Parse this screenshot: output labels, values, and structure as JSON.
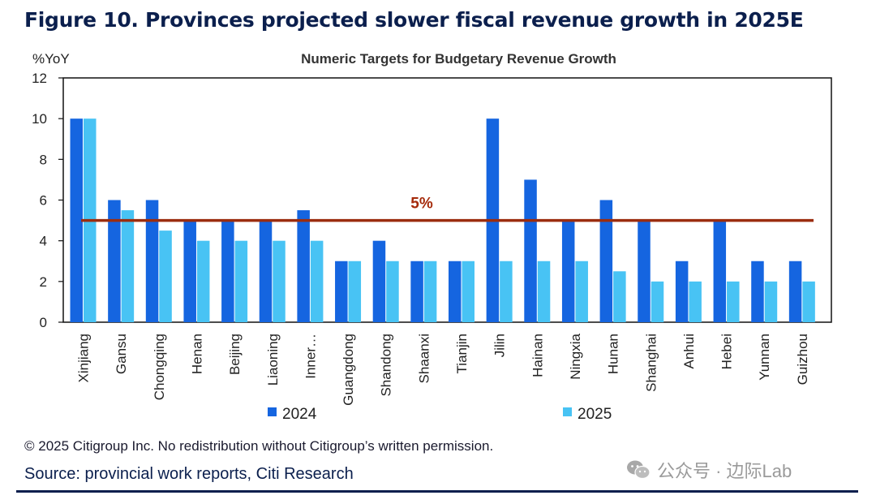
{
  "figure_title": "Figure 10. Provinces projected slower fiscal revenue growth in 2025E",
  "copyright": "© 2025 Citigroup Inc. No redistribution without Citigroup’s written permission.",
  "source": "Source: provincial work reports, Citi Research",
  "watermark": {
    "icon": "wechat-icon",
    "text": "公众号 · 边际Lab"
  },
  "colors": {
    "series_2024": "#1565e0",
    "series_2025": "#48c3f4",
    "reference": "#9b2d0f",
    "title": "#0b1f4d"
  },
  "chart_data": {
    "type": "bar",
    "title": "Numeric Targets for Budgetary Revenue Growth",
    "ylabel": "%YoY",
    "xlabel": "",
    "ylim": [
      0,
      12
    ],
    "yticks": [
      0,
      2,
      4,
      6,
      8,
      10,
      12
    ],
    "categories": [
      "Xinjiang",
      "Gansu",
      "Chongqing",
      "Henan",
      "Beijing",
      "Liaoning",
      "Inner…",
      "Guangdong",
      "Shandong",
      "Shaanxi",
      "Tianjin",
      "Jilin",
      "Hainan",
      "Ningxia",
      "Hunan",
      "Shanghai",
      "Anhui",
      "Hebei",
      "Yunnan",
      "Guizhou"
    ],
    "series": [
      {
        "name": "2024",
        "values": [
          10,
          6,
          6,
          5,
          5,
          5,
          5.5,
          3,
          4,
          3,
          3,
          10,
          7,
          5,
          6,
          5,
          3,
          5,
          3,
          3
        ]
      },
      {
        "name": "2025",
        "values": [
          10,
          5.5,
          4.5,
          4,
          4,
          4,
          4,
          3,
          3,
          3,
          3,
          3,
          3,
          3,
          2.5,
          2,
          2,
          2,
          2,
          2
        ]
      }
    ],
    "reference_line": {
      "value": 5,
      "label": "5%"
    },
    "legend": "bottom",
    "grid": false
  }
}
